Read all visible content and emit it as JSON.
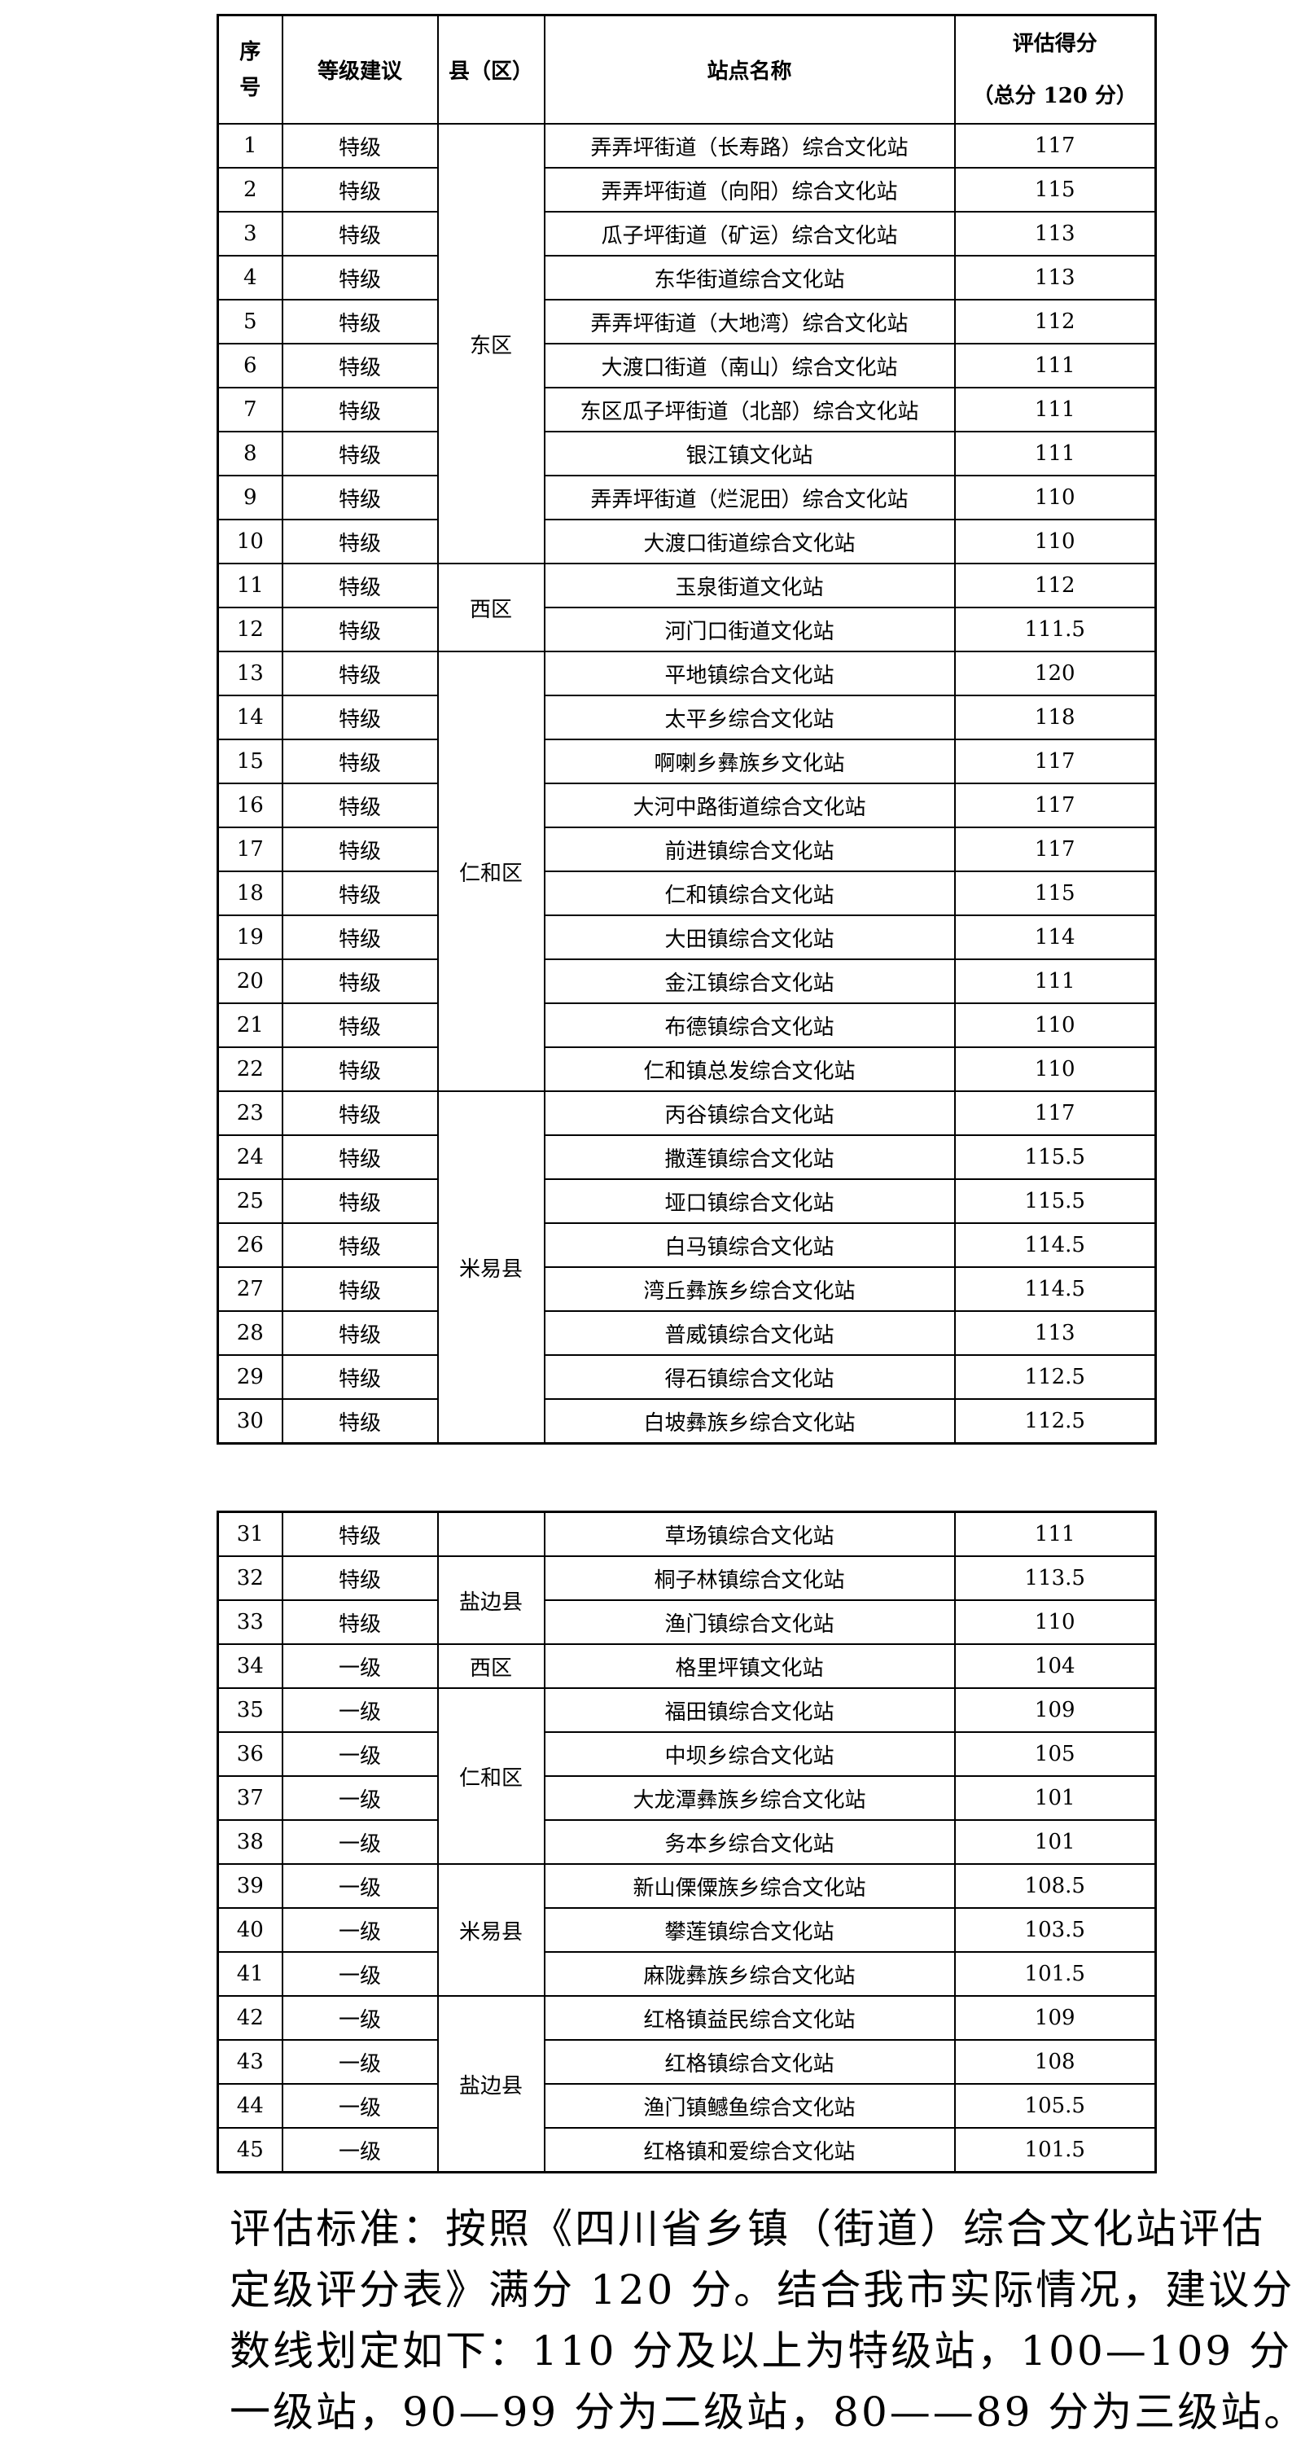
{
  "header": {
    "seq_line1": "序",
    "seq_line2": "号",
    "grade": "等级建议",
    "county": "县（区）",
    "name": "站点名称",
    "score_line1": "评估得分",
    "score_line2": "（总分 120 分）"
  },
  "table1": [
    {
      "county": "东区",
      "rows": [
        [
          "1",
          "特级",
          "弄弄坪街道（长寿路）综合文化站",
          "117"
        ],
        [
          "2",
          "特级",
          "弄弄坪街道（向阳）综合文化站",
          "115"
        ],
        [
          "3",
          "特级",
          "瓜子坪街道（矿运）综合文化站",
          "113"
        ],
        [
          "4",
          "特级",
          "东华街道综合文化站",
          "113"
        ],
        [
          "5",
          "特级",
          "弄弄坪街道（大地湾）综合文化站",
          "112"
        ],
        [
          "6",
          "特级",
          "大渡口街道（南山）综合文化站",
          "111"
        ],
        [
          "7",
          "特级",
          "东区瓜子坪街道（北部）综合文化站",
          "111"
        ],
        [
          "8",
          "特级",
          "银江镇文化站",
          "111"
        ],
        [
          "9",
          "特级",
          "弄弄坪街道（烂泥田）综合文化站",
          "110"
        ],
        [
          "10",
          "特级",
          "大渡口街道综合文化站",
          "110"
        ]
      ]
    },
    {
      "county": "西区",
      "rows": [
        [
          "11",
          "特级",
          "玉泉街道文化站",
          "112"
        ],
        [
          "12",
          "特级",
          "河门口街道文化站",
          "111.5"
        ]
      ]
    },
    {
      "county": "仁和区",
      "rows": [
        [
          "13",
          "特级",
          "平地镇综合文化站",
          "120"
        ],
        [
          "14",
          "特级",
          "太平乡综合文化站",
          "118"
        ],
        [
          "15",
          "特级",
          "啊喇乡彝族乡文化站",
          "117"
        ],
        [
          "16",
          "特级",
          "大河中路街道综合文化站",
          "117"
        ],
        [
          "17",
          "特级",
          "前进镇综合文化站",
          "117"
        ],
        [
          "18",
          "特级",
          "仁和镇综合文化站",
          "115"
        ],
        [
          "19",
          "特级",
          "大田镇综合文化站",
          "114"
        ],
        [
          "20",
          "特级",
          "金江镇综合文化站",
          "111"
        ],
        [
          "21",
          "特级",
          "布德镇综合文化站",
          "110"
        ],
        [
          "22",
          "特级",
          "仁和镇总发综合文化站",
          "110"
        ]
      ]
    },
    {
      "county": "米易县",
      "rows": [
        [
          "23",
          "特级",
          "丙谷镇综合文化站",
          "117"
        ],
        [
          "24",
          "特级",
          "撒莲镇综合文化站",
          "115.5"
        ],
        [
          "25",
          "特级",
          "垭口镇综合文化站",
          "115.5"
        ],
        [
          "26",
          "特级",
          "白马镇综合文化站",
          "114.5"
        ],
        [
          "27",
          "特级",
          "湾丘彝族乡综合文化站",
          "114.5"
        ],
        [
          "28",
          "特级",
          "普威镇综合文化站",
          "113"
        ],
        [
          "29",
          "特级",
          "得石镇综合文化站",
          "112.5"
        ],
        [
          "30",
          "特级",
          "白坡彝族乡综合文化站",
          "112.5"
        ]
      ]
    }
  ],
  "table2": [
    {
      "county": "",
      "rows": [
        [
          "31",
          "特级",
          "草场镇综合文化站",
          "111"
        ]
      ]
    },
    {
      "county": "盐边县",
      "rows": [
        [
          "32",
          "特级",
          "桐子林镇综合文化站",
          "113.5"
        ],
        [
          "33",
          "特级",
          "渔门镇综合文化站",
          "110"
        ]
      ]
    },
    {
      "county": "西区",
      "rows": [
        [
          "34",
          "一级",
          "格里坪镇文化站",
          "104"
        ]
      ]
    },
    {
      "county": "仁和区",
      "rows": [
        [
          "35",
          "一级",
          "福田镇综合文化站",
          "109"
        ],
        [
          "36",
          "一级",
          "中坝乡综合文化站",
          "105"
        ],
        [
          "37",
          "一级",
          "大龙潭彝族乡综合文化站",
          "101"
        ],
        [
          "38",
          "一级",
          "务本乡综合文化站",
          "101"
        ]
      ]
    },
    {
      "county": "米易县",
      "rows": [
        [
          "39",
          "一级",
          "新山傈僳族乡综合文化站",
          "108.5"
        ],
        [
          "40",
          "一级",
          "攀莲镇综合文化站",
          "103.5"
        ],
        [
          "41",
          "一级",
          "麻陇彝族乡综合文化站",
          "101.5"
        ]
      ]
    },
    {
      "county": "盐边县",
      "rows": [
        [
          "42",
          "一级",
          "红格镇益民综合文化站",
          "109"
        ],
        [
          "43",
          "一级",
          "红格镇综合文化站",
          "108"
        ],
        [
          "44",
          "一级",
          "渔门镇鳡鱼综合文化站",
          "105.5"
        ],
        [
          "45",
          "一级",
          "红格镇和爱综合文化站",
          "101.5"
        ]
      ]
    }
  ],
  "note": {
    "lines": [
      "评估标准：按照《四川省乡镇（街道）综合文化站评估",
      "定级评分表》满分 120 分。结合我市实际情况，建议分",
      "数线划定如下：110 分及以上为特级站，100—109 分为",
      "一级站，90—99 分为二级站，80——89 分为三级站。"
    ]
  }
}
